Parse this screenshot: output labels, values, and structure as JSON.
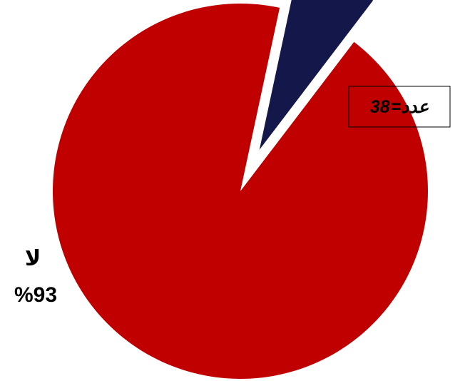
{
  "chart_data": {
    "type": "pie",
    "exploded": true,
    "start_angle_deg": 90,
    "slices": [
      {
        "name": "لا",
        "percent_label": "%93",
        "value": 93,
        "color": "#C00000"
      },
      {
        "name": "",
        "percent_label": "",
        "value": 7,
        "color": "#14174A"
      }
    ],
    "annotation": {
      "text": "عدد= 38",
      "label_prefix": "عدد=",
      "label_value": "38"
    }
  }
}
